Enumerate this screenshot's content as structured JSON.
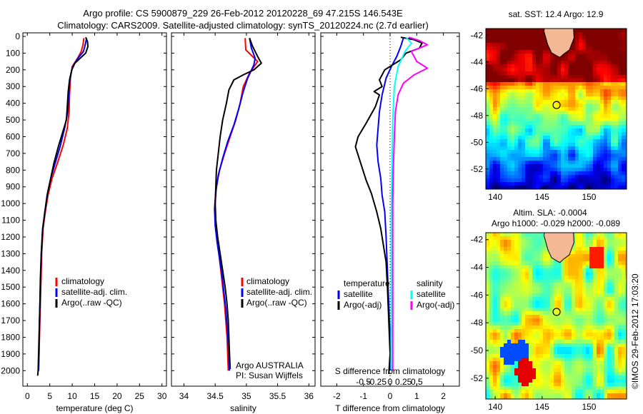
{
  "header": {
    "title_line1": "Argo profile: CS 5900879_229 26-Feb-2012 20120228_69 47.215S 146.543E",
    "title_line2": "Climatology: CARS2009. Satellite-adjusted climatology: synTS_20120224.nc (2.7d earlier)"
  },
  "sidebar": {
    "sst_title": "sat. SST: 12.4 Argo: 12.9",
    "sla_title1": "Altim. SLA: -0.0004",
    "sla_title2": "Argo h1000: -0.029 h2000: -0.089",
    "credit": "©IMOS 29-Feb-2012 17:03:20",
    "agency_line1": "Argo AUSTRALIA",
    "agency_line2": "PI: Susan Wijffels"
  },
  "colors": {
    "climatology": "#ff0000",
    "satellite": "#0000ff",
    "argo": "#000000",
    "salinity_satellite": "#00ffff",
    "salinity_argo": "#ff00ff",
    "land": "#f5b895"
  },
  "chart_data": [
    {
      "id": "temperature",
      "type": "line",
      "xlabel": "temperature (deg C)",
      "ylabel": "",
      "xlim": [
        -1,
        31
      ],
      "ylim": [
        2050,
        0
      ],
      "xticks": [
        0,
        5,
        10,
        15,
        20,
        25,
        30
      ],
      "yticks": [
        0,
        100,
        200,
        300,
        400,
        500,
        600,
        700,
        800,
        900,
        1000,
        1100,
        1200,
        1300,
        1400,
        1500,
        1600,
        1700,
        1800,
        1900,
        2000
      ],
      "legend": [
        "climatology",
        "satellite-adj. clim.",
        "Argo(..raw -QC)"
      ],
      "series": [
        {
          "name": "climatology",
          "color": "#ff0000",
          "points": [
            [
              12.6,
              10
            ],
            [
              12.4,
              50
            ],
            [
              12.0,
              90
            ],
            [
              11.2,
              130
            ],
            [
              10.0,
              180
            ],
            [
              9.6,
              250
            ],
            [
              9.4,
              350
            ],
            [
              9.3,
              450
            ],
            [
              8.9,
              550
            ],
            [
              8.0,
              650
            ],
            [
              6.8,
              750
            ],
            [
              5.5,
              850
            ],
            [
              4.6,
              950
            ],
            [
              4.0,
              1050
            ],
            [
              3.5,
              1150
            ],
            [
              3.2,
              1300
            ],
            [
              3.0,
              1500
            ],
            [
              2.8,
              1700
            ],
            [
              2.6,
              1900
            ],
            [
              2.5,
              2000
            ]
          ]
        },
        {
          "name": "satellite-adj. clim.",
          "color": "#0000ff",
          "points": [
            [
              13.2,
              10
            ],
            [
              12.9,
              50
            ],
            [
              12.5,
              90
            ],
            [
              11.3,
              130
            ],
            [
              10.1,
              180
            ],
            [
              9.5,
              250
            ],
            [
              9.2,
              350
            ],
            [
              9.0,
              450
            ],
            [
              8.3,
              550
            ],
            [
              7.4,
              650
            ],
            [
              6.3,
              750
            ],
            [
              5.2,
              850
            ],
            [
              4.4,
              950
            ],
            [
              3.9,
              1050
            ],
            [
              3.4,
              1150
            ],
            [
              3.1,
              1300
            ],
            [
              2.9,
              1500
            ],
            [
              2.7,
              1700
            ],
            [
              2.6,
              1900
            ],
            [
              2.5,
              2000
            ]
          ]
        },
        {
          "name": "Argo(..raw -QC)",
          "color": "#000000",
          "points": [
            [
              13.0,
              5
            ],
            [
              13.4,
              30
            ],
            [
              13.5,
              60
            ],
            [
              13.0,
              100
            ],
            [
              11.8,
              130
            ],
            [
              10.6,
              160
            ],
            [
              9.9,
              200
            ],
            [
              9.4,
              260
            ],
            [
              9.1,
              330
            ],
            [
              8.9,
              420
            ],
            [
              8.7,
              500
            ],
            [
              7.8,
              580
            ],
            [
              6.9,
              660
            ],
            [
              5.9,
              760
            ],
            [
              5.2,
              850
            ],
            [
              4.5,
              940
            ],
            [
              3.9,
              1050
            ],
            [
              3.4,
              1160
            ],
            [
              3.1,
              1300
            ],
            [
              2.9,
              1450
            ],
            [
              2.8,
              1600
            ],
            [
              2.6,
              1800
            ],
            [
              2.4,
              2000
            ],
            [
              2.3,
              2030
            ]
          ]
        }
      ]
    },
    {
      "id": "salinity",
      "type": "line",
      "xlabel": "salinity",
      "ylabel": "",
      "xlim": [
        33.8,
        36.1
      ],
      "ylim": [
        2050,
        0
      ],
      "xticks": [
        34,
        34.5,
        35,
        35.5,
        36
      ],
      "legend": [
        "climatology",
        "satellite-adj. clim.",
        "Argo(..raw -QC)"
      ],
      "series": [
        {
          "name": "climatology",
          "color": "#ff0000",
          "points": [
            [
              34.98,
              10
            ],
            [
              34.99,
              80
            ],
            [
              35.18,
              150
            ],
            [
              35.05,
              220
            ],
            [
              34.95,
              300
            ],
            [
              34.9,
              400
            ],
            [
              34.83,
              500
            ],
            [
              34.74,
              600
            ],
            [
              34.65,
              700
            ],
            [
              34.57,
              800
            ],
            [
              34.52,
              900
            ],
            [
              34.5,
              1000
            ],
            [
              34.51,
              1100
            ],
            [
              34.53,
              1200
            ],
            [
              34.56,
              1300
            ],
            [
              34.59,
              1400
            ],
            [
              34.62,
              1500
            ],
            [
              34.65,
              1600
            ],
            [
              34.67,
              1700
            ],
            [
              34.69,
              1800
            ],
            [
              34.7,
              1900
            ],
            [
              34.71,
              2000
            ]
          ]
        },
        {
          "name": "satellite-adj. clim.",
          "color": "#0000ff",
          "points": [
            [
              35.05,
              10
            ],
            [
              35.08,
              70
            ],
            [
              35.14,
              130
            ],
            [
              35.12,
              170
            ],
            [
              35.02,
              250
            ],
            [
              34.95,
              330
            ],
            [
              34.88,
              430
            ],
            [
              34.8,
              530
            ],
            [
              34.7,
              630
            ],
            [
              34.62,
              730
            ],
            [
              34.55,
              830
            ],
            [
              34.51,
              930
            ],
            [
              34.49,
              1030
            ],
            [
              34.5,
              1130
            ],
            [
              34.53,
              1230
            ],
            [
              34.57,
              1330
            ],
            [
              34.61,
              1430
            ],
            [
              34.64,
              1530
            ],
            [
              34.67,
              1630
            ],
            [
              34.69,
              1730
            ],
            [
              34.71,
              1830
            ],
            [
              34.72,
              1930
            ],
            [
              34.73,
              2000
            ]
          ]
        },
        {
          "name": "Argo(..raw -QC)",
          "color": "#000000",
          "points": [
            [
              35.05,
              10
            ],
            [
              35.1,
              60
            ],
            [
              35.18,
              120
            ],
            [
              35.24,
              160
            ],
            [
              35.12,
              200
            ],
            [
              34.95,
              230
            ],
            [
              34.8,
              260
            ],
            [
              34.72,
              320
            ],
            [
              34.68,
              400
            ],
            [
              34.62,
              500
            ],
            [
              34.58,
              600
            ],
            [
              34.55,
              700
            ],
            [
              34.52,
              800
            ],
            [
              34.51,
              900
            ],
            [
              34.5,
              1000
            ],
            [
              34.51,
              1100
            ],
            [
              34.54,
              1200
            ],
            [
              34.58,
              1300
            ],
            [
              34.62,
              1400
            ],
            [
              34.66,
              1500
            ],
            [
              34.69,
              1600
            ],
            [
              34.71,
              1700
            ],
            [
              34.72,
              1800
            ],
            [
              34.73,
              1900
            ],
            [
              34.74,
              1990
            ]
          ]
        }
      ]
    },
    {
      "id": "difference",
      "type": "line",
      "xlabel": "T difference from climatology",
      "xlabel_top": "S difference from climatology",
      "xlim": [
        -2.6,
        2.6
      ],
      "ylim": [
        2050,
        0
      ],
      "xticks": [
        -2,
        -1,
        0,
        1,
        2
      ],
      "xticks_top_values": [
        -0.5,
        -0.25,
        0,
        0.25,
        0.5
      ],
      "xticks_top_labels": [
        "-0.5",
        "-0.25",
        "0",
        "0.25",
        "0.5"
      ],
      "legend_headers": [
        "temperature",
        "salinity"
      ],
      "legend": [
        "satellite",
        "Argo(-adj)",
        "satellite",
        "Argo(-adj)"
      ],
      "series": [
        {
          "name": "temperature satellite",
          "color": "#0000ff",
          "points": [
            [
              0.5,
              10
            ],
            [
              0.4,
              60
            ],
            [
              0.25,
              120
            ],
            [
              0.05,
              180
            ],
            [
              -0.15,
              250
            ],
            [
              -0.3,
              350
            ],
            [
              -0.4,
              450
            ],
            [
              -0.45,
              550
            ],
            [
              -0.5,
              650
            ],
            [
              -0.45,
              750
            ],
            [
              -0.35,
              850
            ],
            [
              -0.3,
              950
            ],
            [
              -0.2,
              1050
            ],
            [
              -0.15,
              1200
            ],
            [
              -0.1,
              1400
            ],
            [
              -0.05,
              1600
            ],
            [
              0,
              1800
            ],
            [
              0,
              2000
            ]
          ]
        },
        {
          "name": "temperature Argo(-adj)",
          "color": "#000000",
          "points": [
            [
              0.4,
              5
            ],
            [
              0.9,
              20
            ],
            [
              1.2,
              40
            ],
            [
              1.1,
              70
            ],
            [
              0.6,
              100
            ],
            [
              0.4,
              140
            ],
            [
              -0.2,
              200
            ],
            [
              -0.4,
              260
            ],
            [
              -0.3,
              300
            ],
            [
              -0.6,
              330
            ],
            [
              -0.4,
              350
            ],
            [
              -0.55,
              420
            ],
            [
              -0.9,
              520
            ],
            [
              -1.2,
              600
            ],
            [
              -1.3,
              660
            ],
            [
              -1.1,
              760
            ],
            [
              -0.9,
              860
            ],
            [
              -0.7,
              940
            ],
            [
              -0.5,
              1050
            ],
            [
              -0.35,
              1150
            ],
            [
              -0.25,
              1250
            ],
            [
              -0.15,
              1350
            ],
            [
              -0.1,
              1500
            ],
            [
              -0.05,
              1700
            ],
            [
              0,
              1900
            ],
            [
              -0.05,
              2020
            ]
          ]
        },
        {
          "name": "salinity satellite",
          "color": "#00ffff",
          "points": [
            [
              0.3,
              5
            ],
            [
              0.4,
              40
            ],
            [
              0.28,
              90
            ],
            [
              0.15,
              180
            ],
            [
              0.08,
              300
            ],
            [
              0.05,
              500
            ],
            [
              0.04,
              700
            ],
            [
              0.03,
              900
            ],
            [
              0.02,
              1100
            ],
            [
              0.02,
              1300
            ],
            [
              0.02,
              1500
            ],
            [
              0.02,
              1700
            ],
            [
              0.02,
              1900
            ],
            [
              0.02,
              2000
            ]
          ]
        },
        {
          "name": "salinity Argo(-adj)",
          "color": "#ff00ff",
          "points": [
            [
              0.35,
              5
            ],
            [
              0.55,
              25
            ],
            [
              0.7,
              50
            ],
            [
              0.4,
              90
            ],
            [
              0.5,
              150
            ],
            [
              0.7,
              190
            ],
            [
              0.45,
              230
            ],
            [
              0.25,
              280
            ],
            [
              0.15,
              350
            ],
            [
              0.1,
              450
            ],
            [
              0.08,
              600
            ],
            [
              0.06,
              800
            ],
            [
              0.05,
              1000
            ],
            [
              0.05,
              1200
            ],
            [
              0.05,
              1400
            ],
            [
              0.05,
              1600
            ],
            [
              0.05,
              1800
            ],
            [
              0.05,
              2000
            ]
          ]
        }
      ]
    },
    {
      "id": "sst-map",
      "type": "heatmap",
      "title": "sat. SST: 12.4 Argo: 12.9",
      "xlim": [
        139,
        154
      ],
      "ylim": [
        -53.5,
        -41.5
      ],
      "xticks": [
        140,
        145,
        150
      ],
      "yticks": [
        -42,
        -44,
        -46,
        -48,
        -50,
        -52
      ],
      "argo_position": [
        146.543,
        -47.215
      ]
    },
    {
      "id": "sla-map",
      "type": "heatmap",
      "title": "Altim. SLA: -0.0004",
      "xlim": [
        139,
        154
      ],
      "ylim": [
        -53.5,
        -41.5
      ],
      "xticks": [
        140,
        145,
        150
      ],
      "yticks": [
        -42,
        -44,
        -46,
        -48,
        -50,
        -52
      ],
      "argo_position": [
        146.543,
        -47.215
      ]
    }
  ]
}
